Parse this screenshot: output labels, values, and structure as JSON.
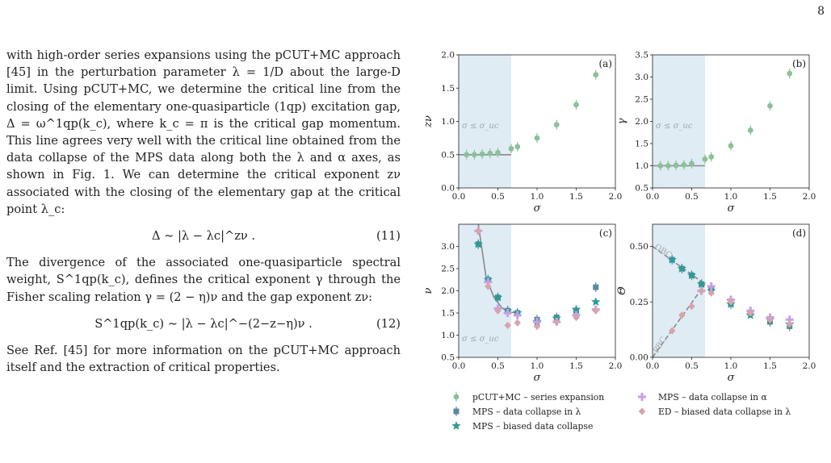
{
  "page_number": "8",
  "paragraph1": "with high-order series expansions using the pCUT+MC approach [45] in the perturbation parameter λ = 1/D about the large-D limit. Using pCUT+MC, we determine the critical line from the closing of the elementary one-quasiparticle (1qp) excitation gap, Δ = ω^1qp(k_c), where k_c = π is the critical gap momentum. This line agrees very well with the critical line obtained from the data collapse of the MPS data along both the λ and α axes, as shown in Fig. 1. We can determine the critical exponent zν associated with the closing of the elementary gap at the critical point λ_c:",
  "equation11": "Δ ~ |λ − λc|^zν .",
  "equation11_number": "(11)",
  "paragraph2": "The divergence of the associated one-quasiparticle spectral weight, S^1qp(k_c), defines the critical exponent γ through the Fisher scaling relation γ = (2 − η)ν and the gap exponent zν:",
  "equation12": "S^1qp(k_c) ~ |λ − λc|^−(2−z−η)ν .",
  "equation12_number": "(12)",
  "paragraph3": "See Ref. [45] for more information on the pCUT+MC approach itself and the extraction of critical properties.",
  "chart_data": [
    {
      "type": "scatter",
      "panel": "(a)",
      "xlabel": "σ",
      "ylabel": "zν",
      "xlim": [
        0,
        2
      ],
      "ylim": [
        0,
        2
      ],
      "xticks": [
        "0.0",
        "0.5",
        "1.0",
        "1.5",
        "2.0"
      ],
      "yticks": [
        "0.0",
        "0.5",
        "1.0",
        "1.5",
        "2.0"
      ],
      "shaded_region": [
        0,
        0.67
      ],
      "shaded_label": "σ ≤ σ_uc",
      "series": [
        {
          "name": "pCUT+MC – series expansion",
          "x": [
            0.1,
            0.2,
            0.3,
            0.4,
            0.5,
            0.67,
            0.75,
            1.0,
            1.25,
            1.5,
            1.75
          ],
          "y": [
            0.5,
            0.5,
            0.51,
            0.52,
            0.53,
            0.59,
            0.62,
            0.75,
            0.95,
            1.25,
            1.7
          ]
        }
      ],
      "reference_line": {
        "x": [
          0,
          0.67
        ],
        "y": [
          0.5,
          0.5
        ]
      }
    },
    {
      "type": "scatter",
      "panel": "(b)",
      "xlabel": "σ",
      "ylabel": "γ",
      "xlim": [
        0,
        2
      ],
      "ylim": [
        0.5,
        3.5
      ],
      "xticks": [
        "0.0",
        "0.5",
        "1.0",
        "1.5",
        "2.0"
      ],
      "yticks": [
        "0.5",
        "1.0",
        "1.5",
        "2.0",
        "2.5",
        "3.0",
        "3.5"
      ],
      "shaded_region": [
        0,
        0.67
      ],
      "shaded_label": "σ ≤ σ_uc",
      "series": [
        {
          "name": "pCUT+MC – series expansion",
          "x": [
            0.1,
            0.2,
            0.3,
            0.4,
            0.5,
            0.67,
            0.75,
            1.0,
            1.25,
            1.5,
            1.75
          ],
          "y": [
            1.0,
            1.0,
            1.01,
            1.02,
            1.05,
            1.15,
            1.2,
            1.45,
            1.8,
            2.35,
            3.08
          ]
        }
      ],
      "reference_line": {
        "x": [
          0,
          0.67
        ],
        "y": [
          1.0,
          1.0
        ]
      }
    },
    {
      "type": "scatter",
      "panel": "(c)",
      "xlabel": "σ",
      "ylabel": "ν",
      "xlim": [
        0,
        2
      ],
      "ylim": [
        0.5,
        3.5
      ],
      "xticks": [
        "0.0",
        "0.5",
        "1.0",
        "1.5",
        "2.0"
      ],
      "yticks": [
        "0.5",
        "1.0",
        "1.5",
        "2.0",
        "2.5",
        "3.0"
      ],
      "shaded_region": [
        0,
        0.67
      ],
      "shaded_label": "σ ≤ σ_uc",
      "series": [
        {
          "name": "MPS – data collapse in λ",
          "x": [
            0.25,
            0.375,
            0.5,
            0.625,
            0.75,
            1.0,
            1.25,
            1.5,
            1.75
          ],
          "y": [
            3.05,
            2.25,
            1.85,
            1.55,
            1.5,
            1.35,
            1.4,
            1.55,
            2.08
          ]
        },
        {
          "name": "MPS – biased data collapse",
          "x": [
            0.25,
            0.375,
            0.5,
            0.625,
            0.75,
            1.0,
            1.25,
            1.5,
            1.75
          ],
          "y": [
            3.05,
            2.25,
            1.85,
            1.55,
            1.5,
            1.3,
            1.38,
            1.58,
            1.75
          ]
        },
        {
          "name": "MPS – data collapse in α",
          "x": [
            0.25,
            0.375,
            0.5,
            0.625,
            0.75,
            1.0,
            1.25,
            1.5,
            1.75
          ],
          "y": [
            3.35,
            2.2,
            1.6,
            1.5,
            1.45,
            1.3,
            1.3,
            1.45,
            1.58
          ]
        },
        {
          "name": "ED – biased data collapse in λ",
          "x": [
            0.25,
            0.375,
            0.5,
            0.625,
            0.75,
            1.0,
            1.25,
            1.5,
            1.75
          ],
          "y": [
            3.35,
            2.1,
            1.55,
            1.22,
            1.28,
            1.2,
            1.3,
            1.4,
            1.55
          ]
        }
      ],
      "reference_line": {
        "x": [
          0.25,
          0.35,
          0.45,
          0.55,
          0.65,
          0.75
        ],
        "y": [
          3.5,
          2.3,
          1.85,
          1.62,
          1.52,
          1.5
        ]
      }
    },
    {
      "type": "scatter",
      "panel": "(d)",
      "xlabel": "σ",
      "ylabel": "Θ",
      "xlim": [
        0,
        2
      ],
      "ylim": [
        0,
        0.6
      ],
      "xticks": [
        "0.0",
        "0.5",
        "1.0",
        "1.5",
        "2.0"
      ],
      "yticks": [
        "0.00",
        "0.25",
        "0.50"
      ],
      "shaded_region": [
        0,
        0.67
      ],
      "line_labels": [
        "OBC",
        "PBC"
      ],
      "series": [
        {
          "name": "MPS – data collapse in λ",
          "x": [
            0.25,
            0.375,
            0.5,
            0.625,
            0.75,
            1.0,
            1.25,
            1.5,
            1.75
          ],
          "y": [
            0.44,
            0.4,
            0.37,
            0.33,
            0.31,
            0.24,
            0.2,
            0.16,
            0.14
          ]
        },
        {
          "name": "MPS – biased data collapse",
          "x": [
            0.25,
            0.375,
            0.5,
            0.625,
            0.75,
            1.0,
            1.25,
            1.5,
            1.75
          ],
          "y": [
            0.44,
            0.4,
            0.37,
            0.33,
            0.3,
            0.24,
            0.19,
            0.17,
            0.15
          ]
        },
        {
          "name": "MPS – data collapse in α",
          "x": [
            0.625,
            0.75,
            1.0,
            1.25,
            1.5,
            1.75
          ],
          "y": [
            0.3,
            0.32,
            0.26,
            0.21,
            0.18,
            0.17
          ]
        },
        {
          "name": "ED – biased data collapse in λ",
          "x": [
            0.25,
            0.375,
            0.5,
            0.625,
            0.75,
            1.0,
            1.25,
            1.5,
            1.75
          ],
          "y": [
            0.12,
            0.19,
            0.23,
            0.3,
            0.29,
            0.25,
            0.2,
            0.17,
            0.15
          ]
        }
      ],
      "reference_lines": [
        {
          "name": "OBC",
          "x": [
            0,
            0.67
          ],
          "y": [
            0.5,
            0.33
          ]
        },
        {
          "name": "PBC",
          "x": [
            0,
            0.67
          ],
          "y": [
            0,
            0.33
          ]
        }
      ]
    }
  ],
  "legend": [
    {
      "label": "pCUT+MC – series expansion",
      "marker": "errorbar-circle",
      "color": "#8cc09a"
    },
    {
      "label": "MPS – data collapse in α",
      "marker": "plus",
      "color": "#c6a0e3"
    },
    {
      "label": "MPS – data collapse in λ",
      "marker": "errorbar-square",
      "color": "#5b89a0"
    },
    {
      "label": "ED – biased data collapse in λ",
      "marker": "diamond",
      "color": "#d7a3ae"
    },
    {
      "label": "MPS – biased data collapse",
      "marker": "star",
      "color": "#2d9b96"
    }
  ],
  "colors": {
    "shade": "#dfecf3",
    "pcut": "#8cc09a",
    "mps_lambda": "#5b89a0",
    "mps_biased": "#2d9b96",
    "mps_alpha": "#c6a0e3",
    "ed": "#d7a3ae",
    "line": "#8a8a8a"
  }
}
